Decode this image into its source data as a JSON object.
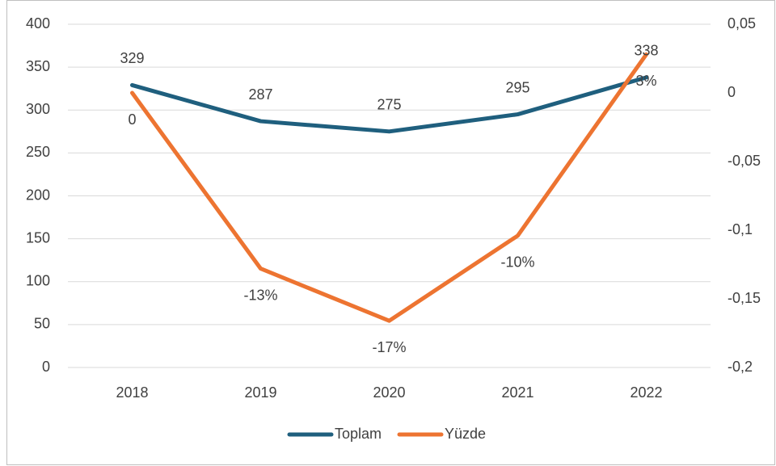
{
  "chart_data": {
    "type": "line",
    "categories": [
      "2018",
      "2019",
      "2020",
      "2021",
      "2022"
    ],
    "series": [
      {
        "name": "Toplam",
        "color": "#1f5f7e",
        "values": [
          329,
          287,
          275,
          295,
          338
        ]
      },
      {
        "name": "Yüzde",
        "color": "#ed7431",
        "axis": "y2",
        "values": [
          0,
          -0.128,
          -0.166,
          -0.104,
          0.028
        ],
        "value_labels": [
          "0",
          "-13%",
          "-17%",
          "-10%",
          "3%"
        ]
      }
    ],
    "ylim": [
      0,
      400
    ],
    "yticks": [
      0,
      50,
      100,
      150,
      200,
      250,
      300,
      350,
      400
    ],
    "y2lim": [
      -0.2,
      0.05
    ],
    "y2ticks": [
      {
        "value": -0.2,
        "label": "-0,2"
      },
      {
        "value": -0.15,
        "label": "-0,15"
      },
      {
        "value": -0.1,
        "label": "-0,1"
      },
      {
        "value": -0.05,
        "label": "-0,05"
      },
      0,
      {
        "value": 0.05,
        "label": "0,05"
      }
    ],
    "grid": true,
    "legend": "bottom"
  }
}
